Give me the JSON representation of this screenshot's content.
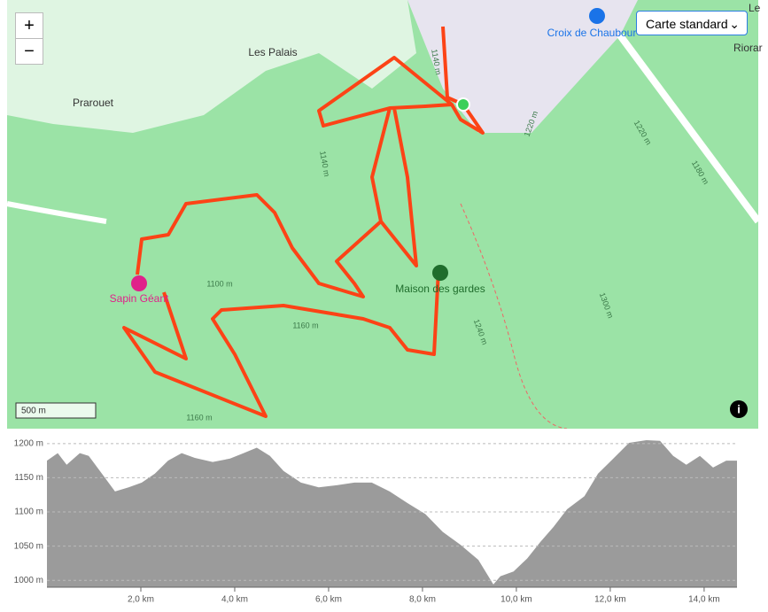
{
  "map": {
    "places": [
      "Les Palais",
      "Prarouet",
      "Le",
      "Riorar"
    ],
    "pois": [
      "Sapin Géant",
      "Maison des gardes",
      "Croix de Chaubour"
    ],
    "contours": [
      "1100 m",
      "1160 m",
      "1160 m",
      "1240 m",
      "1300 m",
      "1220 m",
      "1180 m",
      "1140 m",
      "1220 m",
      "1140 m"
    ],
    "scale": "500 m",
    "zoom_in": "+",
    "zoom_out": "−",
    "layer": "Carte standard",
    "info": "i"
  },
  "chart_data": {
    "type": "area",
    "color": "#9b9b9b",
    "x": [
      0,
      0.23,
      0.42,
      0.7,
      0.89,
      1.17,
      1.45,
      1.74,
      2.02,
      2.3,
      2.58,
      2.87,
      3.15,
      3.53,
      3.9,
      4.19,
      4.47,
      4.75,
      5.04,
      5.41,
      5.79,
      6.17,
      6.55,
      6.92,
      7.3,
      7.68,
      8.06,
      8.43,
      8.81,
      9.19,
      9.51,
      9.66,
      9.94,
      10.23,
      10.51,
      10.79,
      11.08,
      11.45,
      11.74,
      12.02,
      12.4,
      12.77,
      13.06,
      13.34,
      13.62,
      13.91,
      14.19,
      14.47,
      14.7
    ],
    "values": [
      1175,
      1186,
      1169,
      1186,
      1182,
      1156,
      1130,
      1136,
      1143,
      1156,
      1175,
      1186,
      1179,
      1173,
      1178,
      1186,
      1194,
      1182,
      1160,
      1143,
      1136,
      1139,
      1143,
      1143,
      1130,
      1113,
      1097,
      1071,
      1052,
      1030,
      994,
      1006,
      1013,
      1032,
      1056,
      1078,
      1104,
      1123,
      1156,
      1175,
      1201,
      1205,
      1204,
      1182,
      1169,
      1182,
      1165,
      1175,
      1175
    ],
    "xlim": [
      0,
      14.7
    ],
    "ylim": [
      990,
      1214
    ],
    "xticks": [
      {
        "value": 2,
        "label": "2,0 km"
      },
      {
        "value": 4,
        "label": "4,0 km"
      },
      {
        "value": 6,
        "label": "6,0 km"
      },
      {
        "value": 8,
        "label": "8,0 km"
      },
      {
        "value": 10,
        "label": "10,0 km"
      },
      {
        "value": 12,
        "label": "12,0 km"
      },
      {
        "value": 14,
        "label": "14,0 km"
      }
    ],
    "yticks": [
      {
        "value": 1000,
        "label": "1000 m"
      },
      {
        "value": 1050,
        "label": "1050 m"
      },
      {
        "value": 1100,
        "label": "1100 m"
      },
      {
        "value": 1150,
        "label": "1150 m"
      },
      {
        "value": 1200,
        "label": "1200 m"
      }
    ],
    "grid": true
  }
}
